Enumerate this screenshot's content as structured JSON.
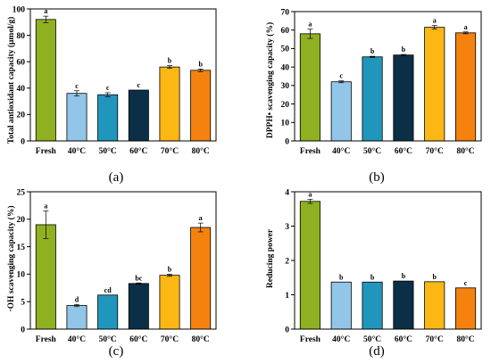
{
  "chart_data": [
    {
      "type": "bar",
      "panel_label": "(a)",
      "ylabel": "Total antioxidant capacity (μmol/g)",
      "ylim": [
        0,
        100
      ],
      "yticks": [
        0,
        20,
        40,
        60,
        80,
        100
      ],
      "categories": [
        "Fresh",
        "40°C",
        "50°C",
        "60°C",
        "70°C",
        "80°C"
      ],
      "values": [
        92,
        36,
        35,
        38.5,
        56,
        53.5
      ],
      "errors": [
        2.5,
        2,
        1.5,
        0,
        1,
        1
      ],
      "significance": [
        "a",
        "c",
        "c",
        "c",
        "b",
        "b"
      ],
      "colors": [
        "#8fb021",
        "#92c6e8",
        "#2196bd",
        "#0a2f47",
        "#fbb714",
        "#f5820f"
      ]
    },
    {
      "type": "bar",
      "panel_label": "(b)",
      "ylabel": "DPPH• scavenging capacity (%)",
      "ylim": [
        0,
        70
      ],
      "yticks": [
        0,
        10,
        20,
        30,
        40,
        50,
        60,
        70
      ],
      "categories": [
        "Fresh",
        "40°C",
        "50°C",
        "60°C",
        "70°C",
        "80°C"
      ],
      "values": [
        58,
        32,
        45.5,
        46.5,
        61.5,
        58.5
      ],
      "errors": [
        2.5,
        0.5,
        0.3,
        0.3,
        1,
        0.5
      ],
      "significance": [
        "a",
        "c",
        "b",
        "b",
        "a",
        "a"
      ],
      "colors": [
        "#8fb021",
        "#92c6e8",
        "#2196bd",
        "#0a2f47",
        "#fbb714",
        "#f5820f"
      ]
    },
    {
      "type": "bar",
      "panel_label": "(c)",
      "ylabel": "·OH scavenging capacity (%)",
      "ylim": [
        0,
        25
      ],
      "yticks": [
        0,
        5,
        10,
        15,
        20,
        25
      ],
      "categories": [
        "Fresh",
        "40°C",
        "50°C",
        "60°C",
        "70°C",
        "80°C"
      ],
      "values": [
        19,
        4.3,
        6.2,
        8.3,
        9.8,
        18.5
      ],
      "errors": [
        2.5,
        0.2,
        0,
        0.1,
        0.2,
        0.8
      ],
      "significance": [
        "a",
        "d",
        "cd",
        "bc",
        "b",
        "a"
      ],
      "colors": [
        "#8fb021",
        "#92c6e8",
        "#2196bd",
        "#0a2f47",
        "#fbb714",
        "#f5820f"
      ]
    },
    {
      "type": "bar",
      "panel_label": "(d)",
      "ylabel": "Reducing power",
      "ylim": [
        0,
        4
      ],
      "yticks": [
        0,
        1,
        2,
        3,
        4
      ],
      "categories": [
        "Fresh",
        "40°C",
        "50°C",
        "60°C",
        "70°C",
        "80°C"
      ],
      "values": [
        3.72,
        1.37,
        1.37,
        1.4,
        1.38,
        1.2
      ],
      "errors": [
        0.06,
        0,
        0,
        0,
        0,
        0
      ],
      "significance": [
        "a",
        "b",
        "b",
        "b",
        "b",
        "c"
      ],
      "colors": [
        "#8fb021",
        "#92c6e8",
        "#2196bd",
        "#0a2f47",
        "#fbb714",
        "#f5820f"
      ]
    }
  ]
}
